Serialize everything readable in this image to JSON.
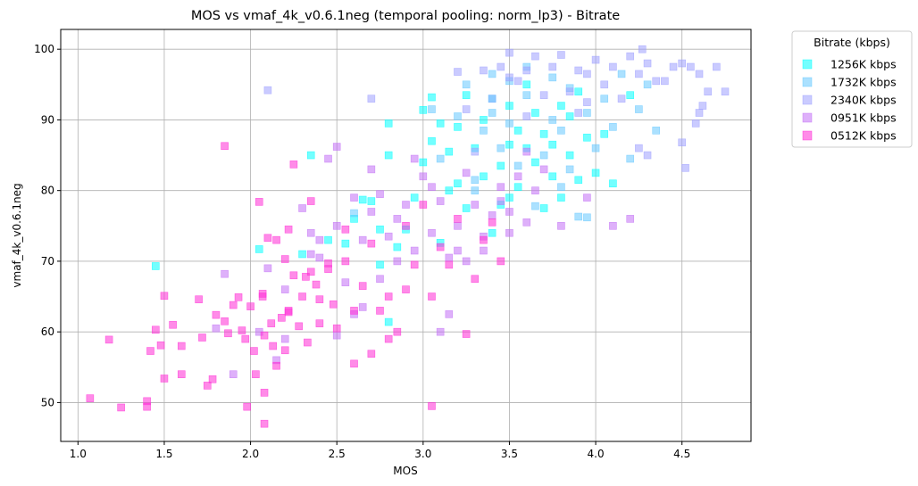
{
  "chart_data": {
    "type": "scatter",
    "title": "MOS vs vmaf_4k_v0.6.1neg (temporal pooling: norm_lp3) - Bitrate",
    "xlabel": "MOS",
    "ylabel": "vmaf_4k_v0.6.1neg",
    "xlim": [
      0.9,
      4.9
    ],
    "ylim": [
      44.5,
      102.8
    ],
    "xticks": [
      1.0,
      1.5,
      2.0,
      2.5,
      3.0,
      3.5,
      4.0,
      4.5
    ],
    "xtick_labels": [
      "1.0",
      "1.5",
      "2.0",
      "2.5",
      "3.0",
      "3.5",
      "4.0",
      "4.5"
    ],
    "yticks": [
      50,
      60,
      70,
      80,
      90,
      100
    ],
    "ytick_labels": [
      "50",
      "60",
      "70",
      "80",
      "90",
      "100"
    ],
    "grid": true,
    "marker": "square",
    "legend": {
      "title": "Bitrate (kbps)",
      "placement": "outside-top-right"
    },
    "series": [
      {
        "name": "1256K kbps",
        "color": "#00ffff",
        "points": [
          [
            1.45,
            69.3
          ],
          [
            2.05,
            71.7
          ],
          [
            2.3,
            71.0
          ],
          [
            2.45,
            73.0
          ],
          [
            2.55,
            72.5
          ],
          [
            2.6,
            76.0
          ],
          [
            2.65,
            78.7
          ],
          [
            2.7,
            78.5
          ],
          [
            2.75,
            74.5
          ],
          [
            2.75,
            69.5
          ],
          [
            2.8,
            61.4
          ],
          [
            2.8,
            85.0
          ],
          [
            2.8,
            89.5
          ],
          [
            2.85,
            72.0
          ],
          [
            2.9,
            74.5
          ],
          [
            2.95,
            79.0
          ],
          [
            3.0,
            91.4
          ],
          [
            3.05,
            87.0
          ],
          [
            3.05,
            93.2
          ],
          [
            3.1,
            72.6
          ],
          [
            3.1,
            89.5
          ],
          [
            3.15,
            80.0
          ],
          [
            3.15,
            85.5
          ],
          [
            3.2,
            81.0
          ],
          [
            3.2,
            89.0
          ],
          [
            3.25,
            93.5
          ],
          [
            3.3,
            86.0
          ],
          [
            3.35,
            82.0
          ],
          [
            3.35,
            90.0
          ],
          [
            3.4,
            74.0
          ],
          [
            3.4,
            93.0
          ],
          [
            3.45,
            78.0
          ],
          [
            3.45,
            83.5
          ],
          [
            3.5,
            79.0
          ],
          [
            3.5,
            86.5
          ],
          [
            3.5,
            92.0
          ],
          [
            3.55,
            80.5
          ],
          [
            3.55,
            88.5
          ],
          [
            3.6,
            95.0
          ],
          [
            3.65,
            84.0
          ],
          [
            3.65,
            91.0
          ],
          [
            3.7,
            77.5
          ],
          [
            3.7,
            88.0
          ],
          [
            3.75,
            82.0
          ],
          [
            3.75,
            86.5
          ],
          [
            3.8,
            79.0
          ],
          [
            3.8,
            92.0
          ],
          [
            3.85,
            85.0
          ],
          [
            3.9,
            81.5
          ],
          [
            3.9,
            94.0
          ],
          [
            3.95,
            87.5
          ],
          [
            4.0,
            82.5
          ],
          [
            4.05,
            88.0
          ],
          [
            4.1,
            81.0
          ],
          [
            4.2,
            93.5
          ],
          [
            3.0,
            84.0
          ],
          [
            3.25,
            77.5
          ],
          [
            3.6,
            86.0
          ],
          [
            3.85,
            90.5
          ],
          [
            2.35,
            85.0
          ]
        ]
      },
      {
        "name": "1732K kbps",
        "color": "#66c8ff",
        "points": [
          [
            2.6,
            76.8
          ],
          [
            3.05,
            91.5
          ],
          [
            3.1,
            84.5
          ],
          [
            3.2,
            90.5
          ],
          [
            3.25,
            95.0
          ],
          [
            3.3,
            81.5
          ],
          [
            3.35,
            88.5
          ],
          [
            3.4,
            96.5
          ],
          [
            3.45,
            86.0
          ],
          [
            3.5,
            89.5
          ],
          [
            3.55,
            83.5
          ],
          [
            3.6,
            93.5
          ],
          [
            3.65,
            77.8
          ],
          [
            3.7,
            85.0
          ],
          [
            3.75,
            90.0
          ],
          [
            3.75,
            96.0
          ],
          [
            3.8,
            88.5
          ],
          [
            3.85,
            83.0
          ],
          [
            3.85,
            94.5
          ],
          [
            3.9,
            76.3
          ],
          [
            3.95,
            91.0
          ],
          [
            4.0,
            86.0
          ],
          [
            4.05,
            93.0
          ],
          [
            4.1,
            89.0
          ],
          [
            4.2,
            84.5
          ],
          [
            4.25,
            91.5
          ],
          [
            4.3,
            95.0
          ],
          [
            4.35,
            88.5
          ],
          [
            3.4,
            91.0
          ],
          [
            3.6,
            97.5
          ],
          [
            3.8,
            80.5
          ],
          [
            4.15,
            96.5
          ],
          [
            3.95,
            76.2
          ],
          [
            3.3,
            80.0
          ],
          [
            3.5,
            95.5
          ]
        ]
      },
      {
        "name": "2340K kbps",
        "color": "#9ea0ff",
        "points": [
          [
            2.1,
            94.2
          ],
          [
            2.7,
            93.0
          ],
          [
            3.2,
            96.8
          ],
          [
            3.25,
            91.5
          ],
          [
            3.3,
            85.5
          ],
          [
            3.4,
            93.0
          ],
          [
            3.45,
            97.5
          ],
          [
            3.5,
            99.5
          ],
          [
            3.55,
            95.5
          ],
          [
            3.6,
            97.0
          ],
          [
            3.6,
            90.5
          ],
          [
            3.65,
            99.0
          ],
          [
            3.7,
            93.5
          ],
          [
            3.75,
            97.5
          ],
          [
            3.8,
            99.2
          ],
          [
            3.85,
            94.0
          ],
          [
            3.9,
            97.0
          ],
          [
            3.95,
            92.5
          ],
          [
            4.0,
            98.5
          ],
          [
            4.05,
            95.0
          ],
          [
            4.1,
            97.5
          ],
          [
            4.15,
            93.0
          ],
          [
            4.2,
            99.0
          ],
          [
            4.25,
            96.5
          ],
          [
            4.27,
            100.0
          ],
          [
            4.3,
            98.0
          ],
          [
            4.35,
            95.5
          ],
          [
            4.4,
            95.5
          ],
          [
            4.45,
            97.5
          ],
          [
            4.5,
            98.0
          ],
          [
            4.55,
            97.5
          ],
          [
            4.6,
            96.5
          ],
          [
            4.65,
            94.0
          ],
          [
            4.7,
            97.5
          ],
          [
            4.75,
            94.0
          ],
          [
            4.5,
            86.8
          ],
          [
            4.52,
            83.2
          ],
          [
            4.58,
            89.5
          ],
          [
            4.6,
            91.0
          ],
          [
            4.62,
            92.0
          ],
          [
            4.3,
            85.0
          ],
          [
            3.9,
            91.0
          ],
          [
            3.5,
            96.0
          ],
          [
            3.35,
            97.0
          ],
          [
            3.95,
            96.5
          ],
          [
            4.25,
            86.0
          ]
        ]
      },
      {
        "name": "0951K kbps",
        "color": "#c270f5",
        "points": [
          [
            1.85,
            68.2
          ],
          [
            1.9,
            54.0
          ],
          [
            2.1,
            69.0
          ],
          [
            2.2,
            66.0
          ],
          [
            2.3,
            77.5
          ],
          [
            2.35,
            74.0
          ],
          [
            2.4,
            70.5
          ],
          [
            2.45,
            84.5
          ],
          [
            2.5,
            86.2
          ],
          [
            2.5,
            75.0
          ],
          [
            2.55,
            67.0
          ],
          [
            2.6,
            79.0
          ],
          [
            2.65,
            73.0
          ],
          [
            2.7,
            83.0
          ],
          [
            2.75,
            79.5
          ],
          [
            2.8,
            73.5
          ],
          [
            2.85,
            70.0
          ],
          [
            2.9,
            78.0
          ],
          [
            2.95,
            84.5
          ],
          [
            3.0,
            82.0
          ],
          [
            3.05,
            74.0
          ],
          [
            3.1,
            78.5
          ],
          [
            3.15,
            70.5
          ],
          [
            3.2,
            75.0
          ],
          [
            3.25,
            82.5
          ],
          [
            3.3,
            78.0
          ],
          [
            3.35,
            71.5
          ],
          [
            3.4,
            76.5
          ],
          [
            3.45,
            80.5
          ],
          [
            3.5,
            77.0
          ],
          [
            3.55,
            82.0
          ],
          [
            3.6,
            75.5
          ],
          [
            3.65,
            80.0
          ],
          [
            3.7,
            83.0
          ],
          [
            3.8,
            75.0
          ],
          [
            3.95,
            79.0
          ],
          [
            4.1,
            75.0
          ],
          [
            4.2,
            76.0
          ],
          [
            2.4,
            73.0
          ],
          [
            2.75,
            67.5
          ],
          [
            3.1,
            60.0
          ],
          [
            3.15,
            62.5
          ],
          [
            3.25,
            70.0
          ],
          [
            2.65,
            63.5
          ],
          [
            2.5,
            59.5
          ],
          [
            2.2,
            59.0
          ],
          [
            2.15,
            56.0
          ],
          [
            2.05,
            60.0
          ],
          [
            1.8,
            60.5
          ],
          [
            2.85,
            76.0
          ],
          [
            3.45,
            78.5
          ],
          [
            3.35,
            73.5
          ],
          [
            2.95,
            71.5
          ],
          [
            3.05,
            80.5
          ],
          [
            3.6,
            85.5
          ],
          [
            2.6,
            62.5
          ],
          [
            2.35,
            71.0
          ],
          [
            2.7,
            77.0
          ],
          [
            3.2,
            71.5
          ],
          [
            3.5,
            74.0
          ]
        ]
      },
      {
        "name": "0512K kbps",
        "color": "#ff2bd6",
        "points": [
          [
            1.07,
            50.6
          ],
          [
            1.18,
            58.9
          ],
          [
            1.25,
            49.3
          ],
          [
            1.4,
            50.2
          ],
          [
            1.4,
            49.4
          ],
          [
            1.42,
            57.3
          ],
          [
            1.45,
            60.3
          ],
          [
            1.48,
            58.1
          ],
          [
            1.5,
            65.1
          ],
          [
            1.5,
            53.4
          ],
          [
            1.55,
            61.0
          ],
          [
            1.6,
            58.0
          ],
          [
            1.6,
            54.0
          ],
          [
            1.7,
            64.6
          ],
          [
            1.72,
            59.2
          ],
          [
            1.75,
            52.4
          ],
          [
            1.78,
            53.3
          ],
          [
            1.8,
            62.4
          ],
          [
            1.85,
            61.5
          ],
          [
            1.85,
            86.3
          ],
          [
            1.9,
            63.8
          ],
          [
            1.93,
            64.9
          ],
          [
            1.95,
            60.2
          ],
          [
            1.97,
            59.0
          ],
          [
            1.98,
            49.4
          ],
          [
            2.0,
            63.6
          ],
          [
            2.02,
            57.3
          ],
          [
            2.03,
            54.0
          ],
          [
            2.05,
            78.4
          ],
          [
            2.07,
            65.4
          ],
          [
            2.07,
            65.0
          ],
          [
            2.08,
            59.5
          ],
          [
            2.08,
            51.4
          ],
          [
            2.08,
            47.0
          ],
          [
            2.1,
            73.3
          ],
          [
            2.12,
            61.2
          ],
          [
            2.13,
            58.0
          ],
          [
            2.15,
            55.2
          ],
          [
            2.15,
            73.0
          ],
          [
            2.18,
            62.0
          ],
          [
            2.2,
            70.3
          ],
          [
            2.2,
            57.4
          ],
          [
            2.22,
            62.8
          ],
          [
            2.22,
            63.0
          ],
          [
            2.25,
            83.7
          ],
          [
            2.25,
            68.0
          ],
          [
            2.28,
            60.8
          ],
          [
            2.3,
            65.0
          ],
          [
            2.32,
            67.8
          ],
          [
            2.33,
            58.5
          ],
          [
            2.35,
            68.5
          ],
          [
            2.38,
            66.7
          ],
          [
            2.4,
            61.2
          ],
          [
            2.45,
            69.7
          ],
          [
            2.48,
            63.9
          ],
          [
            2.5,
            60.5
          ],
          [
            2.55,
            70.0
          ],
          [
            2.6,
            63.0
          ],
          [
            2.65,
            66.5
          ],
          [
            2.7,
            72.5
          ],
          [
            2.75,
            63.0
          ],
          [
            2.8,
            65.0
          ],
          [
            2.85,
            60.0
          ],
          [
            2.9,
            75.0
          ],
          [
            2.95,
            69.5
          ],
          [
            3.0,
            78.0
          ],
          [
            3.05,
            65.0
          ],
          [
            3.05,
            49.5
          ],
          [
            3.1,
            72.0
          ],
          [
            3.15,
            69.5
          ],
          [
            3.2,
            76.0
          ],
          [
            3.25,
            59.7
          ],
          [
            3.3,
            67.5
          ],
          [
            3.35,
            73.0
          ],
          [
            3.4,
            75.5
          ],
          [
            2.35,
            78.5
          ],
          [
            2.22,
            74.5
          ],
          [
            2.6,
            55.5
          ],
          [
            2.7,
            56.9
          ],
          [
            2.8,
            59.0
          ],
          [
            1.87,
            59.8
          ],
          [
            2.45,
            68.9
          ],
          [
            2.9,
            66.0
          ],
          [
            3.45,
            70.0
          ],
          [
            2.55,
            74.5
          ],
          [
            2.4,
            64.6
          ]
        ]
      }
    ]
  }
}
